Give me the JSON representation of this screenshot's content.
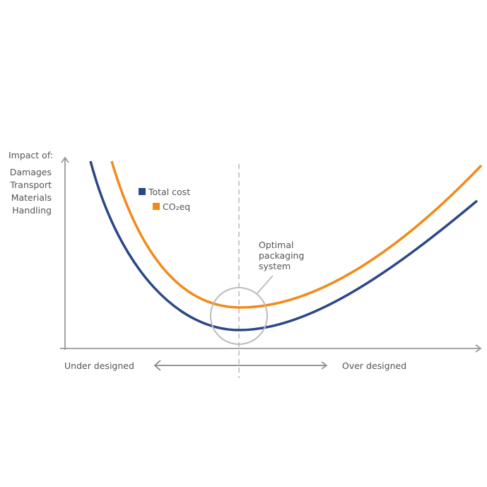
{
  "y_axis": {
    "title": "Impact of:",
    "items": [
      "Damages",
      "Transport",
      "Materials",
      "Handling"
    ]
  },
  "legend": [
    {
      "name": "Total cost",
      "color": "#2b4788"
    },
    {
      "name": "CO₂eq",
      "color": "#f28a1a"
    }
  ],
  "annotation": [
    "Optimal",
    "packaging",
    "system"
  ],
  "x_axis": {
    "left": "Under designed",
    "right": "Over designed"
  }
}
